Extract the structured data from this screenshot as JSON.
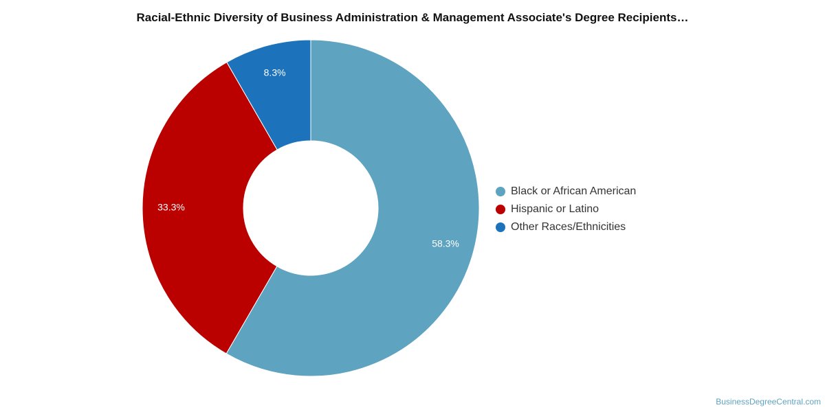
{
  "chart_data": {
    "type": "pie",
    "variant": "donut",
    "title": "Racial-Ethnic Diversity of Business Administration & Management Associate's Degree Recipients…",
    "categories": [
      "Black or African American",
      "Hispanic or Latino",
      "Other Races/Ethnicities"
    ],
    "values": [
      58.3,
      33.3,
      8.3
    ],
    "value_labels": [
      "58.3%",
      "33.3%",
      "8.3%"
    ],
    "colors": [
      "#5ea3c0",
      "#bb0000",
      "#1c72bb"
    ],
    "legend_position": "right"
  },
  "credit": "BusinessDegreeCentral.com"
}
